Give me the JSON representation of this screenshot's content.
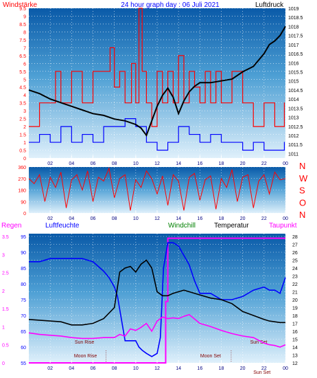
{
  "header": {
    "windstaerke": "Windstärke",
    "title": "24 hour graph day : 06 Juli 2021",
    "luftdruck": "Luftdruck"
  },
  "colors": {
    "wind_avg": "#ff0000",
    "wind_gust": "#0000ff",
    "pressure": "#000000",
    "direction": "#ff0000",
    "regen": "#ff00ff",
    "luftfeuchte": "#0000ff",
    "windchill": "#008000",
    "temperatur": "#000000",
    "taupunkt": "#ff00ff",
    "grid": "#ffffff",
    "tick": "#ffffff"
  },
  "chart_data": [
    {
      "type": "line",
      "name": "wind-pressure",
      "x_ticks": [
        "02",
        "04",
        "06",
        "08",
        "10",
        "12",
        "14",
        "16",
        "18",
        "20",
        "22",
        "00"
      ],
      "left_axis": {
        "label": "Windstärke",
        "ticks": [
          "0",
          "0.5",
          "1",
          "1.5",
          "2",
          "2.5",
          "3",
          "3.5",
          "4",
          "4.5",
          "5",
          "5.5",
          "6",
          "6.5",
          "7",
          "7.5",
          "8",
          "8.5",
          "9",
          "9.5"
        ],
        "ylim": [
          0,
          9.5
        ]
      },
      "right_axis": {
        "label": "Luftdruck",
        "ticks": [
          "1011",
          "1011.5",
          "1012",
          "1012.5",
          "1013",
          "1013.5",
          "1014",
          "1014.5",
          "1015",
          "1015.5",
          "1016",
          "1016.5",
          "1017",
          "1017.5",
          "1018",
          "1018.5",
          "1019"
        ],
        "ylim": [
          1010.75,
          1019
        ]
      },
      "series": [
        {
          "key": "wind_avg",
          "x": [
            0,
            1,
            2,
            2.5,
            3,
            4,
            5,
            6,
            7,
            7.6,
            8,
            8.5,
            9,
            9.6,
            10,
            10.3,
            10.6,
            11,
            11.5,
            12,
            12.5,
            13,
            13.5,
            14,
            14.5,
            15,
            15.5,
            16,
            16.5,
            17,
            17.5,
            18,
            19,
            20,
            21,
            22,
            23,
            23.9
          ],
          "values": [
            2.0,
            3.5,
            3.5,
            5.5,
            3.5,
            5.5,
            3.5,
            5.5,
            5.5,
            7.0,
            4.5,
            5.5,
            3.5,
            6.0,
            3.5,
            9.5,
            5.5,
            3.5,
            2.0,
            5.5,
            3.5,
            5.5,
            3.5,
            6.5,
            3.5,
            5.5,
            4.5,
            3.5,
            5.5,
            3.5,
            5.5,
            3.5,
            5.5,
            3.5,
            2.0,
            3.5,
            2.0,
            3.5
          ]
        },
        {
          "key": "wind_gust",
          "x": [
            0,
            1,
            2,
            3,
            4,
            5,
            6,
            7,
            8,
            9,
            10,
            11,
            12,
            13,
            14,
            15,
            16,
            17,
            18,
            19,
            20,
            21,
            22,
            23,
            23.9
          ],
          "values": [
            1.0,
            1.5,
            1.0,
            2.0,
            1.0,
            1.5,
            1.0,
            2.0,
            2.0,
            2.5,
            2.0,
            1.0,
            0.5,
            1.0,
            2.0,
            1.5,
            1.0,
            1.5,
            1.0,
            1.0,
            0.5,
            1.0,
            0.5,
            0.5,
            1.0
          ]
        },
        {
          "key": "pressure",
          "x": [
            0,
            1,
            2,
            3,
            4,
            5,
            6,
            7,
            8,
            9,
            10,
            10.5,
            11,
            11.5,
            12,
            12.5,
            13,
            13.5,
            14,
            14.5,
            15,
            15.5,
            16,
            17,
            18,
            19,
            20,
            21,
            22,
            22.5,
            23,
            23.5,
            24
          ],
          "values": [
            1014.5,
            1014.3,
            1014.0,
            1013.8,
            1013.6,
            1013.4,
            1013.2,
            1013.1,
            1012.9,
            1012.8,
            1012.6,
            1012.4,
            1012.0,
            1012.8,
            1013.6,
            1014.2,
            1014.6,
            1014.1,
            1013.2,
            1013.9,
            1014.4,
            1014.7,
            1014.9,
            1014.9,
            1015.0,
            1015.1,
            1015.5,
            1015.8,
            1016.5,
            1017.0,
            1017.2,
            1017.5,
            1018.0
          ]
        }
      ]
    },
    {
      "type": "line",
      "name": "wind-direction",
      "x_ticks": [
        "02",
        "04",
        "06",
        "08",
        "10",
        "12",
        "14",
        "16",
        "18",
        "20",
        "22",
        "00"
      ],
      "left_axis": {
        "ticks": [
          "0",
          "90",
          "180",
          "270",
          "360"
        ],
        "ylim": [
          0,
          360
        ]
      },
      "right_axis": {
        "ticks": [
          "N",
          "W",
          "S",
          "O",
          "N"
        ]
      },
      "series": [
        {
          "key": "direction",
          "x": [
            0,
            0.5,
            1,
            1.5,
            2,
            2.5,
            3,
            3.5,
            4,
            4.5,
            5,
            5.5,
            6,
            6.5,
            7,
            7.5,
            8,
            8.5,
            9,
            9.5,
            10,
            10.5,
            11,
            11.5,
            12,
            12.5,
            13,
            13.5,
            14,
            14.5,
            15,
            15.5,
            16,
            16.5,
            17,
            17.5,
            18,
            18.5,
            19,
            19.5,
            20,
            20.5,
            21,
            21.5,
            22,
            22.5,
            23,
            23.5,
            24
          ],
          "values": [
            270,
            230,
            300,
            90,
            280,
            200,
            320,
            40,
            260,
            300,
            180,
            330,
            90,
            280,
            250,
            350,
            120,
            270,
            300,
            20,
            260,
            200,
            330,
            270,
            150,
            290,
            60,
            300,
            250,
            20,
            280,
            310,
            100,
            260,
            290,
            30,
            270,
            200,
            340,
            90,
            280,
            300,
            40,
            250,
            300,
            150,
            320,
            260,
            270
          ]
        }
      ]
    },
    {
      "type": "line",
      "name": "temp-humidity-rain",
      "x_ticks": [
        "02",
        "04",
        "06",
        "08",
        "10",
        "12",
        "14",
        "16",
        "18",
        "20",
        "22",
        "00"
      ],
      "rain_axis": {
        "label": "Regen",
        "ticks": [
          "0",
          "0.5",
          "1",
          "1.5",
          "2",
          "2.5",
          "3",
          "3.5"
        ],
        "ylim": [
          0,
          3.5
        ]
      },
      "humidity_axis": {
        "label": "Luftfeuchte",
        "ticks": [
          "55",
          "60",
          "65",
          "70",
          "75",
          "80",
          "85",
          "90",
          "95"
        ],
        "ylim": [
          55,
          95
        ]
      },
      "temp_axis": {
        "label": "Temperatur",
        "ticks": [
          "12",
          "13",
          "14",
          "15",
          "16",
          "17",
          "18",
          "19",
          "20",
          "21",
          "22",
          "23",
          "24",
          "25",
          "26",
          "27",
          "28"
        ],
        "ylim": [
          12,
          28
        ]
      },
      "legend": [
        "Windchill",
        "Temperatur",
        "Taupunkt"
      ],
      "events": [
        {
          "label": "Moon Rise",
          "hour": 5.3,
          "row": "bottom"
        },
        {
          "label": "Sun Rise",
          "hour": 5.2,
          "row": "top"
        },
        {
          "label": "Moon Set",
          "hour": 17.0,
          "row": "bottom"
        },
        {
          "label": "Sun Set",
          "hour": 21.5,
          "row": "top"
        },
        {
          "label": "Sun Set",
          "hour": 21.8,
          "row": "lowest"
        }
      ],
      "series": [
        {
          "key": "regen",
          "axis": "rain",
          "x": [
            0,
            12.6,
            12.8,
            13.0,
            24
          ],
          "values": [
            0,
            0,
            1.7,
            3.45,
            3.45
          ]
        },
        {
          "key": "luftfeuchte",
          "axis": "humidity",
          "x": [
            0,
            1,
            2,
            3,
            4,
            5,
            6,
            7,
            7.5,
            8,
            8.3,
            8.6,
            9,
            9.5,
            10,
            10.3,
            10.6,
            11,
            11.5,
            12,
            12.3,
            12.6,
            13,
            13.5,
            14,
            14.5,
            15,
            15.5,
            16,
            17,
            18,
            19,
            20,
            21,
            22,
            22.5,
            23,
            23.5,
            24
          ],
          "values": [
            87,
            87,
            88,
            88,
            88,
            88,
            87,
            84,
            82,
            79,
            76,
            70,
            62,
            62,
            62,
            60,
            59,
            58,
            57,
            58,
            63,
            85,
            93,
            93,
            92,
            89,
            86,
            81,
            77,
            77,
            75,
            75,
            76,
            78,
            79,
            78,
            78,
            77,
            82
          ]
        },
        {
          "key": "temperatur",
          "axis": "temp",
          "x": [
            0,
            1,
            2,
            3,
            4,
            5,
            6,
            7,
            8,
            8.5,
            9,
            9.5,
            10,
            10.5,
            11,
            11.5,
            12,
            12.5,
            13,
            13.5,
            14,
            14.5,
            15,
            16,
            17,
            18,
            19,
            20,
            21,
            22,
            22.5,
            23,
            23.5,
            24
          ],
          "values": [
            17.5,
            17.4,
            17.3,
            17.2,
            16.8,
            16.8,
            17.0,
            17.6,
            19.0,
            23.5,
            24.0,
            24.2,
            23.5,
            24.5,
            25.0,
            24.0,
            21.0,
            20.5,
            20.5,
            20.8,
            21.0,
            21.2,
            21.0,
            20.6,
            20.2,
            20.0,
            19.5,
            18.5,
            18.0,
            17.5,
            17.3,
            17.2,
            17.1,
            17.1
          ]
        },
        {
          "key": "taupunkt",
          "axis": "temp",
          "x": [
            0,
            1,
            2,
            3,
            4,
            5,
            6,
            7,
            8,
            8.5,
            9,
            9.5,
            10,
            10.5,
            11,
            11.5,
            12,
            12.5,
            13,
            13.5,
            14,
            14.5,
            15,
            16,
            17,
            18,
            19,
            20,
            21,
            22,
            22.5,
            23,
            23.5,
            24
          ],
          "values": [
            15.8,
            15.6,
            15.5,
            15.4,
            15.2,
            15.1,
            15.1,
            15.2,
            15.2,
            15.6,
            15.4,
            16.3,
            16.1,
            16.5,
            17.0,
            16.0,
            17.3,
            17.8,
            17.6,
            17.7,
            17.6,
            17.9,
            18.1,
            17.0,
            16.6,
            16.1,
            15.7,
            15.4,
            15.2,
            14.5,
            14.3,
            14.2,
            14.0,
            14.3
          ]
        }
      ]
    }
  ]
}
